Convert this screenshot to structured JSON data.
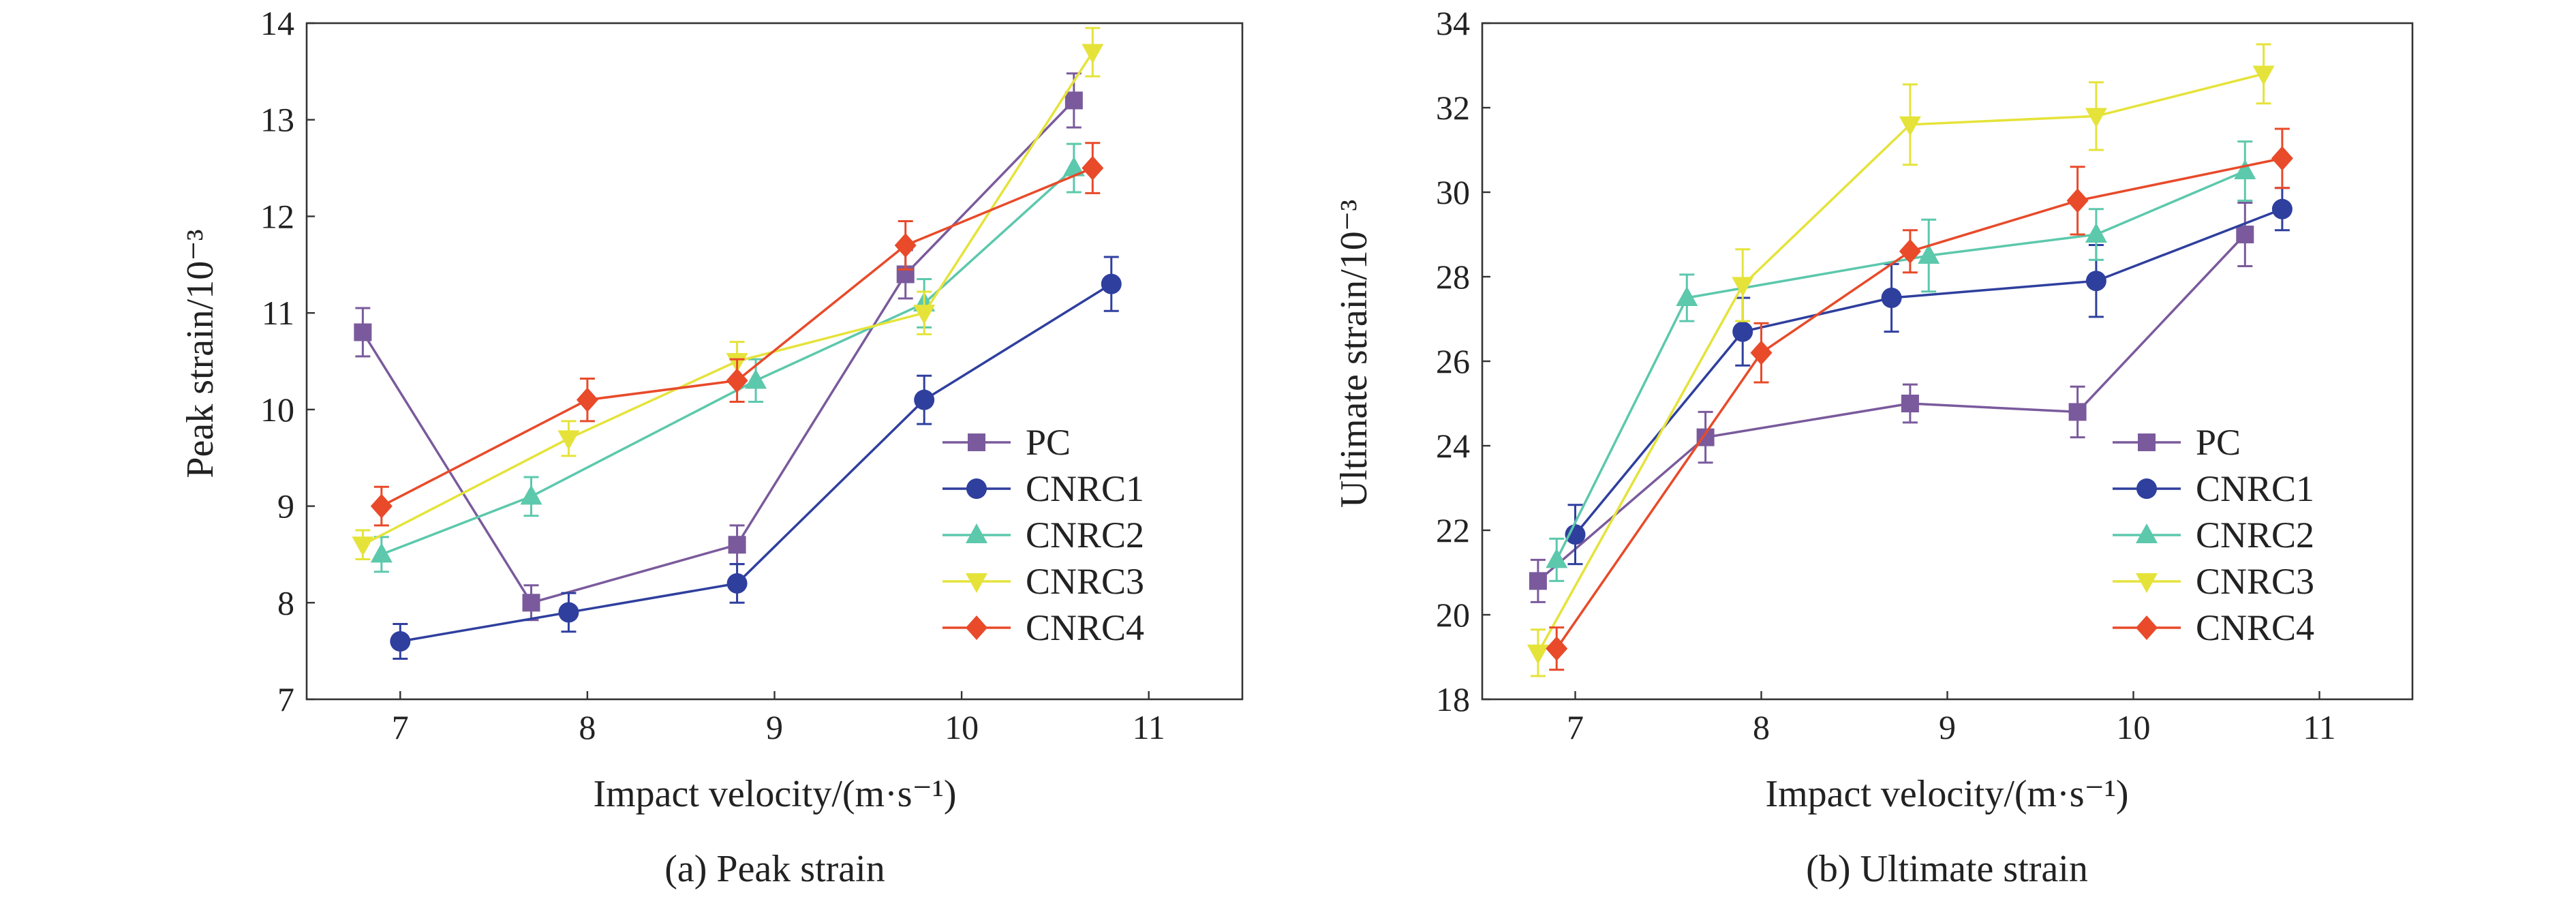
{
  "chart_data": [
    {
      "type": "line",
      "caption": "(a) Peak strain",
      "xlabel": "Impact velocity/(m·s⁻¹)",
      "ylabel": "Peak strain/10⁻³",
      "xlim": [
        6.5,
        11.5
      ],
      "ylim": [
        7,
        14
      ],
      "xticks": [
        7,
        8,
        9,
        10,
        11
      ],
      "yticks": [
        7,
        8,
        9,
        10,
        11,
        12,
        13,
        14
      ],
      "legend_position": "lower-right",
      "series": [
        {
          "name": "PC",
          "color": "#7a5a9c",
          "marker": "square",
          "x": [
            6.8,
            7.7,
            8.8,
            9.7,
            10.6
          ],
          "y": [
            10.8,
            8.0,
            8.6,
            11.4,
            13.2
          ],
          "err": [
            0.25,
            0.18,
            0.2,
            0.25,
            0.28
          ]
        },
        {
          "name": "CNRC1",
          "color": "#2f3f9e",
          "marker": "circle",
          "x": [
            7.0,
            7.9,
            8.8,
            9.8,
            10.8
          ],
          "y": [
            7.6,
            7.9,
            8.2,
            10.1,
            11.3
          ],
          "err": [
            0.18,
            0.2,
            0.2,
            0.25,
            0.28
          ]
        },
        {
          "name": "CNRC2",
          "color": "#5cc8ac",
          "marker": "triangle-up",
          "x": [
            6.9,
            7.7,
            8.9,
            9.8,
            10.6
          ],
          "y": [
            8.5,
            9.1,
            10.3,
            11.1,
            12.5
          ],
          "err": [
            0.18,
            0.2,
            0.22,
            0.25,
            0.25
          ]
        },
        {
          "name": "CNRC3",
          "color": "#e5e33a",
          "marker": "triangle-down",
          "x": [
            6.8,
            7.9,
            8.8,
            9.8,
            10.7
          ],
          "y": [
            8.6,
            9.7,
            10.5,
            11.0,
            13.7
          ],
          "err": [
            0.15,
            0.18,
            0.2,
            0.22,
            0.25
          ]
        },
        {
          "name": "CNRC4",
          "color": "#e84a2a",
          "marker": "diamond",
          "x": [
            6.9,
            8.0,
            8.8,
            9.7,
            10.7
          ],
          "y": [
            9.0,
            10.1,
            10.3,
            11.7,
            12.5
          ],
          "err": [
            0.2,
            0.22,
            0.22,
            0.25,
            0.26
          ]
        }
      ]
    },
    {
      "type": "line",
      "caption": "(b) Ultimate strain",
      "xlabel": "Impact velocity/(m·s⁻¹)",
      "ylabel": "Ultimate strain/10⁻³",
      "xlim": [
        6.5,
        11.5
      ],
      "ylim": [
        18,
        34
      ],
      "xticks": [
        7,
        8,
        9,
        10,
        11
      ],
      "yticks": [
        18,
        20,
        22,
        24,
        26,
        28,
        30,
        32,
        34
      ],
      "legend_position": "lower-right",
      "series": [
        {
          "name": "PC",
          "color": "#7a5a9c",
          "marker": "square",
          "x": [
            6.8,
            7.7,
            8.8,
            9.7,
            10.6
          ],
          "y": [
            20.8,
            24.2,
            25.0,
            24.8,
            29.0
          ],
          "err": [
            0.5,
            0.6,
            0.45,
            0.6,
            0.75
          ]
        },
        {
          "name": "CNRC1",
          "color": "#2f3f9e",
          "marker": "circle",
          "x": [
            7.0,
            7.9,
            8.7,
            9.8,
            10.8
          ],
          "y": [
            21.9,
            26.7,
            27.5,
            27.9,
            29.6
          ],
          "err": [
            0.7,
            0.8,
            0.8,
            0.85,
            0.5
          ]
        },
        {
          "name": "CNRC2",
          "color": "#5cc8ac",
          "marker": "triangle-up",
          "x": [
            6.9,
            7.6,
            8.9,
            9.8,
            10.6
          ],
          "y": [
            21.3,
            27.5,
            28.5,
            29.0,
            30.5
          ],
          "err": [
            0.5,
            0.55,
            0.85,
            0.6,
            0.7
          ]
        },
        {
          "name": "CNRC3",
          "color": "#e5e33a",
          "marker": "triangle-down",
          "x": [
            6.8,
            7.9,
            8.8,
            9.8,
            10.7
          ],
          "y": [
            19.1,
            27.8,
            31.6,
            31.8,
            32.8
          ],
          "err": [
            0.55,
            0.85,
            0.95,
            0.8,
            0.7
          ]
        },
        {
          "name": "CNRC4",
          "color": "#e84a2a",
          "marker": "diamond",
          "x": [
            6.9,
            8.0,
            8.8,
            9.7,
            10.8
          ],
          "y": [
            19.2,
            26.2,
            28.6,
            29.8,
            30.8
          ],
          "err": [
            0.5,
            0.7,
            0.5,
            0.8,
            0.7
          ]
        }
      ]
    }
  ]
}
